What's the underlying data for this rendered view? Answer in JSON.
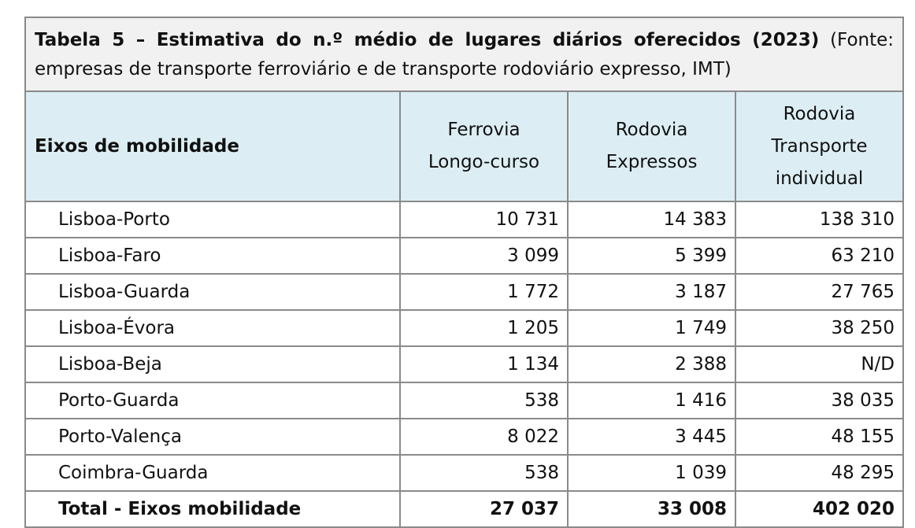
{
  "caption": {
    "bold": "Tabela 5 – Estimativa do n.º médio de lugares diários oferecidos (2023)",
    "normal": " (Fonte: empresas de transporte ferroviário e de transporte rodoviário expresso, IMT)"
  },
  "header": {
    "col1": "Eixos de mobilidade",
    "col2": [
      "Ferrovia",
      "Longo-curso"
    ],
    "col3": [
      "Rodovia",
      "Expressos"
    ],
    "col4": [
      "Rodovia",
      "Transporte",
      "individual"
    ]
  },
  "rows": [
    {
      "name": "Lisboa-Porto",
      "ferrovia": "10 731",
      "expressos": "14 383",
      "individual": "138 310"
    },
    {
      "name": "Lisboa-Faro",
      "ferrovia": "3 099",
      "expressos": "5 399",
      "individual": "63 210"
    },
    {
      "name": "Lisboa-Guarda",
      "ferrovia": "1 772",
      "expressos": "3 187",
      "individual": "27 765"
    },
    {
      "name": "Lisboa-Évora",
      "ferrovia": "1 205",
      "expressos": "1 749",
      "individual": "38 250"
    },
    {
      "name": "Lisboa-Beja",
      "ferrovia": "1 134",
      "expressos": "2 388",
      "individual": "N/D"
    },
    {
      "name": "Porto-Guarda",
      "ferrovia": "538",
      "expressos": "1 416",
      "individual": "38 035"
    },
    {
      "name": "Porto-Valença",
      "ferrovia": "8 022",
      "expressos": "3 445",
      "individual": "48 155"
    },
    {
      "name": "Coimbra-Guarda",
      "ferrovia": "538",
      "expressos": "1 039",
      "individual": "48 295"
    }
  ],
  "total": {
    "name": "Total - Eixos mobilidade",
    "ferrovia": "27 037",
    "expressos": "33 008",
    "individual": "402 020"
  }
}
